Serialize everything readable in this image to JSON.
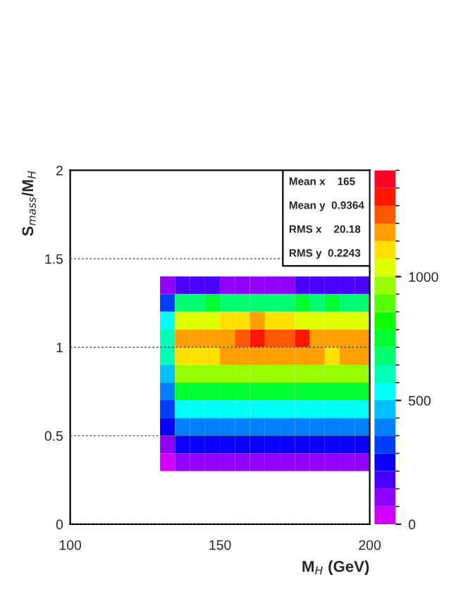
{
  "chart_data": {
    "type": "heatmap",
    "xlabel": "M$_{H}$ (GeV)",
    "ylabel": "S$_{mass}$/M$_{H}$",
    "x": [
      132.5,
      137.5,
      142.5,
      147.5,
      152.5,
      157.5,
      162.5,
      167.5,
      172.5,
      177.5,
      182.5,
      187.5,
      192.5,
      197.5
    ],
    "y": [
      1.35,
      1.25,
      1.15,
      1.05,
      0.95,
      0.85,
      0.75,
      0.65,
      0.55,
      0.45,
      0.35
    ],
    "xlim": [
      100,
      200
    ],
    "ylim": [
      0,
      2
    ],
    "xticks": [
      100,
      150,
      200
    ],
    "yticks": [
      0,
      0.5,
      1,
      1.5,
      2
    ],
    "grid": "y",
    "clim": [
      0,
      1430
    ],
    "cticks": [
      0,
      500,
      1000
    ],
    "cells": [
      [
        80,
        150,
        150,
        150,
        130,
        120,
        120,
        120,
        130,
        150,
        150,
        150,
        150,
        150
      ],
      [
        350,
        700,
        700,
        720,
        700,
        680,
        700,
        700,
        700,
        720,
        700,
        720,
        700,
        700
      ],
      [
        550,
        1050,
        1050,
        1050,
        1080,
        1100,
        1150,
        1120,
        1080,
        1050,
        1050,
        1050,
        1050,
        1050
      ],
      [
        600,
        1150,
        1150,
        1150,
        1200,
        1250,
        1300,
        1280,
        1250,
        1300,
        1200,
        1150,
        1200,
        1150
      ],
      [
        580,
        1100,
        1100,
        1120,
        1150,
        1200,
        1200,
        1150,
        1200,
        1150,
        1150,
        1100,
        1200,
        1150
      ],
      [
        500,
        950,
        950,
        950,
        980,
        950,
        950,
        950,
        950,
        950,
        950,
        950,
        950,
        950
      ],
      [
        400,
        750,
        780,
        750,
        750,
        760,
        780,
        750,
        750,
        750,
        760,
        750,
        740,
        750
      ],
      [
        300,
        550,
        560,
        550,
        560,
        550,
        560,
        550,
        560,
        550,
        550,
        550,
        560,
        550
      ],
      [
        220,
        400,
        400,
        410,
        400,
        400,
        420,
        400,
        400,
        410,
        400,
        400,
        400,
        400
      ],
      [
        140,
        250,
        250,
        260,
        250,
        260,
        250,
        250,
        260,
        250,
        250,
        260,
        250,
        250
      ],
      [
        60,
        100,
        110,
        100,
        100,
        100,
        120,
        100,
        100,
        100,
        100,
        90,
        100,
        100
      ]
    ],
    "annotations": [
      "Mean x    165",
      "Mean y  0.9364",
      "RMS x    20.18",
      "RMS y  0.2243"
    ]
  }
}
